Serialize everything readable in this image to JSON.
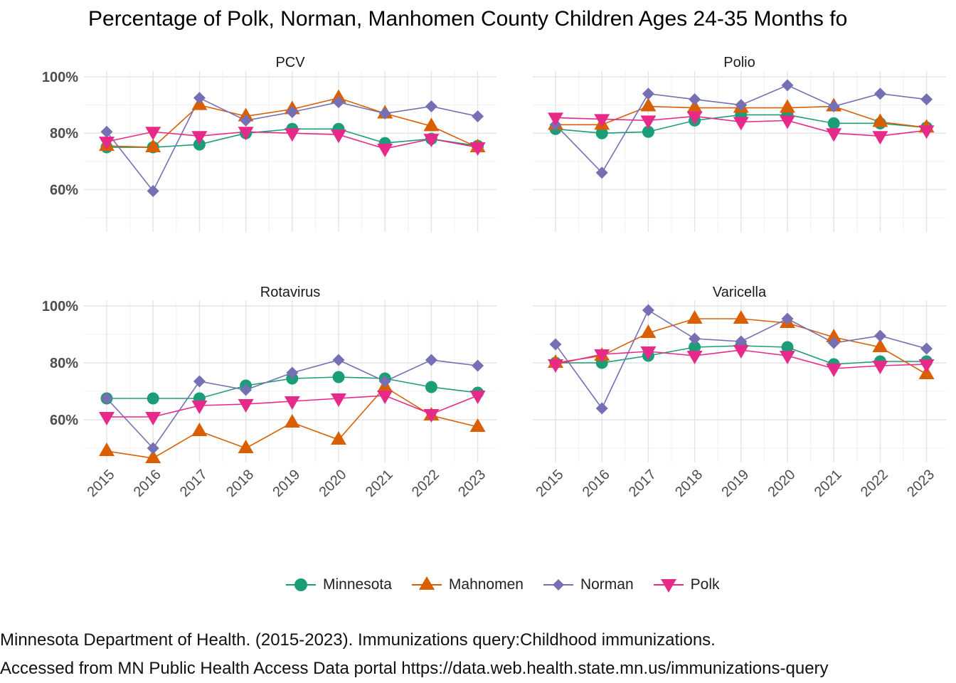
{
  "chart_data": {
    "type": "line",
    "title": "Percentage of Polk, Norman, Manhomen County Children Ages 24-35 Months fo",
    "xlabel": "",
    "ylabel": "",
    "x": [
      "2015",
      "2016",
      "2017",
      "2018",
      "2019",
      "2020",
      "2021",
      "2022",
      "2023"
    ],
    "ylim": [
      0.45,
      1.02
    ],
    "y_ticks": [
      0.6,
      0.8,
      1.0
    ],
    "y_tick_labels": [
      "60%",
      "80%",
      "100%"
    ],
    "grid": true,
    "legend_position": "bottom",
    "series_styles": [
      {
        "name": "Minnesota",
        "color": "#1b9e77",
        "marker": "circle"
      },
      {
        "name": "Mahnomen",
        "color": "#d95f02",
        "marker": "triangle-up"
      },
      {
        "name": "Norman",
        "color": "#7570b3",
        "marker": "diamond"
      },
      {
        "name": "Polk",
        "color": "#e7298a",
        "marker": "triangle-down"
      }
    ],
    "panels": [
      {
        "title": "PCV",
        "series": [
          {
            "name": "Minnesota",
            "values": [
              0.75,
              0.75,
              0.76,
              0.8,
              0.815,
              0.815,
              0.765,
              0.78,
              0.755
            ]
          },
          {
            "name": "Mahnomen",
            "values": [
              0.755,
              0.75,
              0.9,
              0.86,
              0.885,
              0.925,
              0.87,
              0.825,
              0.75
            ]
          },
          {
            "name": "Norman",
            "values": [
              0.805,
              0.595,
              0.925,
              0.845,
              0.875,
              0.91,
              0.87,
              0.895,
              0.86
            ]
          },
          {
            "name": "Polk",
            "values": [
              0.77,
              0.805,
              0.79,
              0.805,
              0.8,
              0.795,
              0.745,
              0.78,
              0.75
            ]
          }
        ]
      },
      {
        "title": "Polio",
        "series": [
          {
            "name": "Minnesota",
            "values": [
              0.815,
              0.8,
              0.805,
              0.845,
              0.865,
              0.865,
              0.835,
              0.835,
              0.82
            ]
          },
          {
            "name": "Mahnomen",
            "values": [
              0.83,
              0.83,
              0.895,
              0.89,
              0.89,
              0.89,
              0.895,
              0.84,
              0.82
            ]
          },
          {
            "name": "Norman",
            "values": [
              0.83,
              0.66,
              0.94,
              0.92,
              0.9,
              0.97,
              0.895,
              0.94,
              0.92
            ]
          },
          {
            "name": "Polk",
            "values": [
              0.855,
              0.85,
              0.845,
              0.86,
              0.84,
              0.845,
              0.8,
              0.79,
              0.81
            ]
          }
        ]
      },
      {
        "title": "Rotavirus",
        "series": [
          {
            "name": "Minnesota",
            "values": [
              0.675,
              0.675,
              0.675,
              0.72,
              0.745,
              0.75,
              0.745,
              0.715,
              0.695
            ]
          },
          {
            "name": "Mahnomen",
            "values": [
              0.49,
              0.465,
              0.56,
              0.5,
              0.59,
              0.53,
              0.715,
              0.615,
              0.575
            ]
          },
          {
            "name": "Norman",
            "values": [
              0.675,
              0.5,
              0.735,
              0.705,
              0.765,
              0.81,
              0.735,
              0.81,
              0.79
            ]
          },
          {
            "name": "Polk",
            "values": [
              0.61,
              0.61,
              0.65,
              0.655,
              0.665,
              0.675,
              0.685,
              0.62,
              0.685
            ]
          }
        ]
      },
      {
        "title": "Varicella",
        "series": [
          {
            "name": "Minnesota",
            "values": [
              0.8,
              0.8,
              0.825,
              0.855,
              0.86,
              0.855,
              0.795,
              0.805,
              0.805
            ]
          },
          {
            "name": "Mahnomen",
            "values": [
              0.8,
              0.825,
              0.905,
              0.955,
              0.955,
              0.94,
              0.89,
              0.855,
              0.76
            ]
          },
          {
            "name": "Norman",
            "values": [
              0.865,
              0.64,
              0.985,
              0.885,
              0.875,
              0.955,
              0.87,
              0.895,
              0.85
            ]
          },
          {
            "name": "Polk",
            "values": [
              0.795,
              0.83,
              0.84,
              0.825,
              0.845,
              0.825,
              0.78,
              0.79,
              0.795
            ]
          }
        ]
      }
    ]
  },
  "legend": {
    "items": [
      {
        "label": "Minnesota",
        "color": "#1b9e77",
        "marker": "circle"
      },
      {
        "label": "Mahnomen",
        "color": "#d95f02",
        "marker": "triangle-up"
      },
      {
        "label": "Norman",
        "color": "#7570b3",
        "marker": "diamond"
      },
      {
        "label": "Polk",
        "color": "#e7298a",
        "marker": "triangle-down"
      }
    ]
  },
  "caption": {
    "line1": "Minnesota Department of Health. (2015-2023). Immunizations query:Childhood immunizations.",
    "line2": "Accessed from MN Public Health Access Data portal https://data.web.health.state.mn.us/immunizations-query"
  }
}
